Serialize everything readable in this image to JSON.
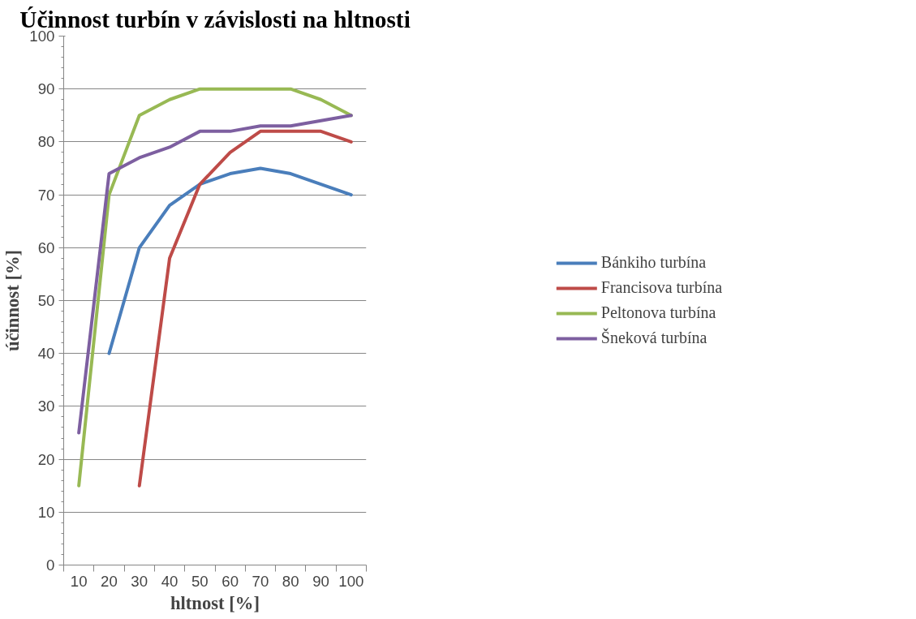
{
  "chart_data": {
    "type": "line",
    "title": "Účinnost turbín v závislosti na hltnosti",
    "xlabel": "hltnost [%]",
    "ylabel": "účinnost [%]",
    "categories": [
      "10",
      "20",
      "30",
      "40",
      "50",
      "60",
      "70",
      "80",
      "90",
      "100"
    ],
    "series": [
      {
        "name": "Bánkiho turbína",
        "color": "#4a7ebb",
        "values": [
          null,
          40,
          60,
          68,
          72,
          74,
          75,
          74,
          72,
          70
        ]
      },
      {
        "name": "Francisova turbína",
        "color": "#be4b48",
        "values": [
          null,
          null,
          15,
          58,
          72,
          78,
          82,
          82,
          82,
          80
        ]
      },
      {
        "name": "Peltonova turbína",
        "color": "#98b954",
        "values": [
          15,
          70,
          85,
          88,
          90,
          90,
          90,
          90,
          88,
          85
        ]
      },
      {
        "name": "Šneková turbína",
        "color": "#7d5fa0",
        "values": [
          25,
          74,
          77,
          79,
          82,
          82,
          83,
          83,
          84,
          85
        ]
      }
    ],
    "ylim": [
      0,
      100
    ],
    "yticks": [
      0,
      10,
      20,
      30,
      40,
      50,
      60,
      70,
      80,
      90,
      100
    ],
    "grid": "y",
    "legend": "right",
    "marker": "none",
    "line_style": "solid"
  }
}
